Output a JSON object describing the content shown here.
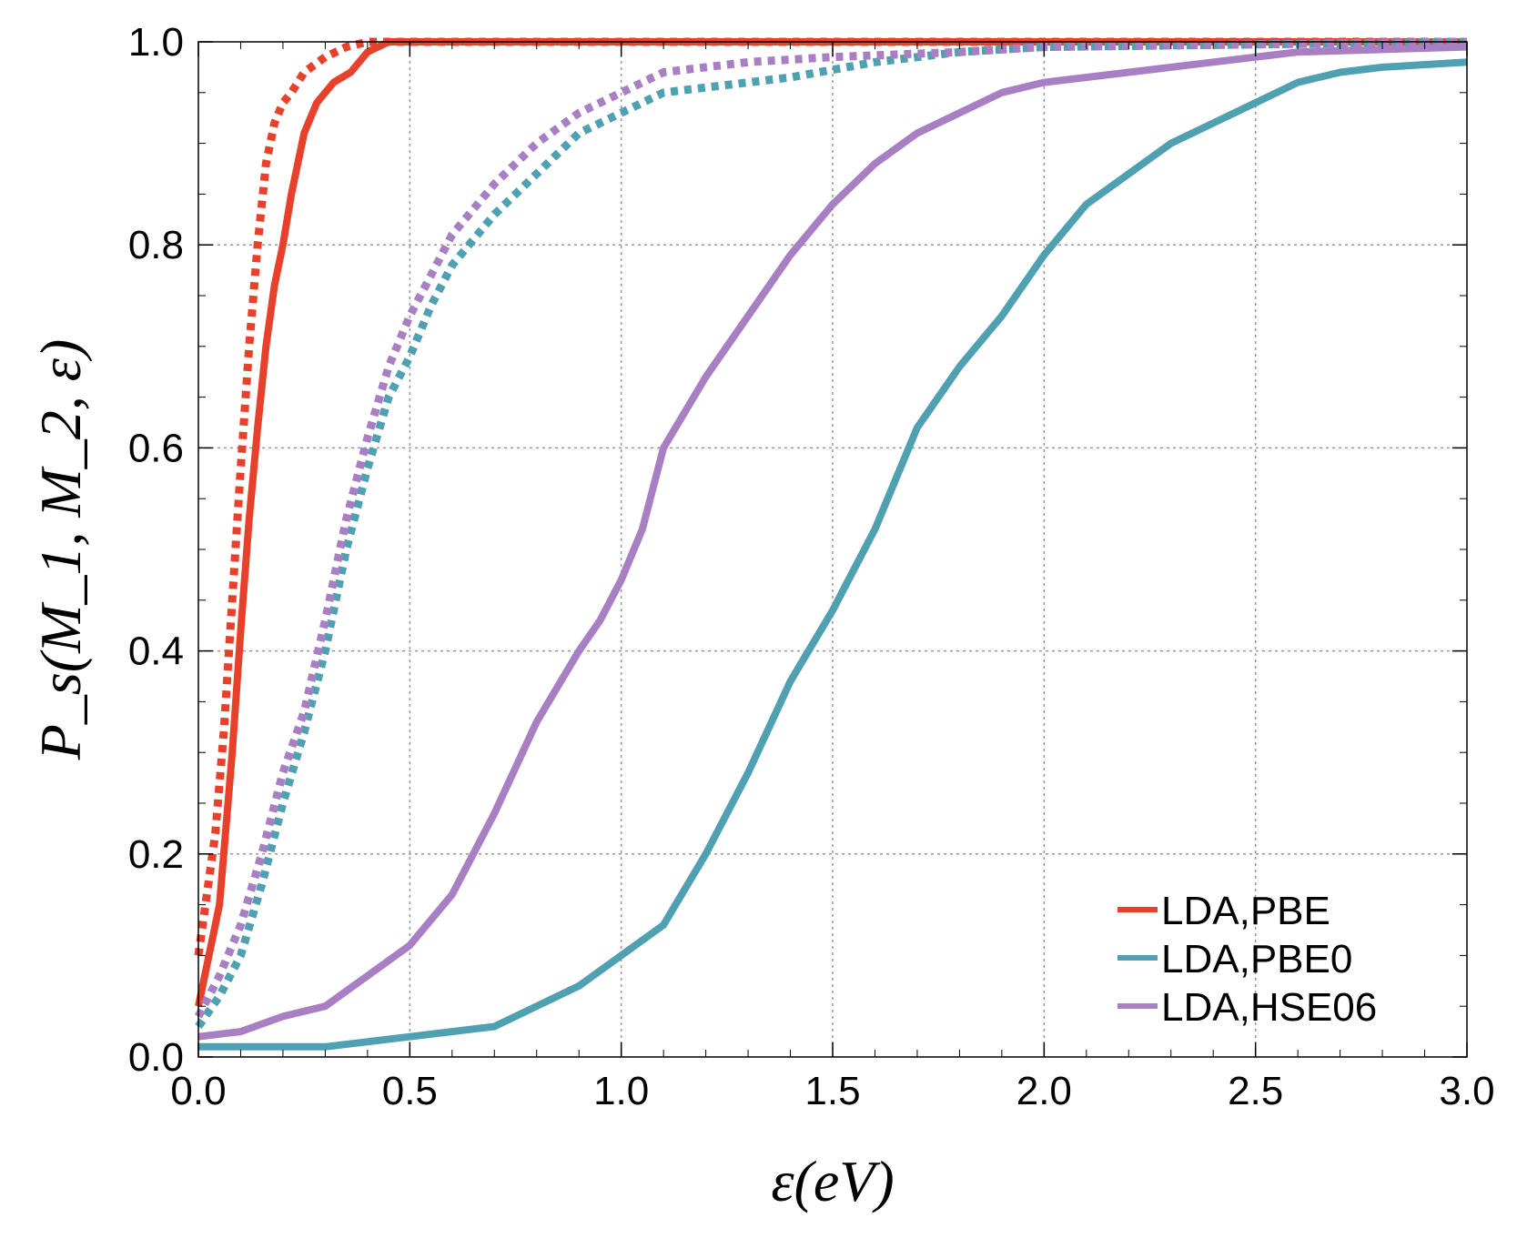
{
  "chart_data": {
    "type": "line",
    "title": "",
    "xlabel": "ε(eV)",
    "ylabel": "P_s(M_1, M_2, ε)",
    "xlim": [
      0,
      3.0
    ],
    "ylim": [
      0,
      1.0
    ],
    "x_ticks": [
      "0.0",
      "0.5",
      "1.0",
      "1.5",
      "2.0",
      "2.5",
      "3.0"
    ],
    "y_ticks": [
      "0.0",
      "0.2",
      "0.4",
      "0.6",
      "0.8",
      "1.0"
    ],
    "grid": true,
    "legend_position": "bottom-right",
    "legend": [
      {
        "label": "LDA,PBE",
        "color": "#e8412b"
      },
      {
        "label": "LDA,PBE0",
        "color": "#4fa0b1"
      },
      {
        "label": "LDA,HSE06",
        "color": "#a97fc4"
      }
    ],
    "series": [
      {
        "name": "LDA,PBE (solid)",
        "color": "#e8412b",
        "style": "solid",
        "x": [
          0.0,
          0.02,
          0.05,
          0.08,
          0.1,
          0.12,
          0.14,
          0.16,
          0.18,
          0.2,
          0.22,
          0.25,
          0.28,
          0.32,
          0.36,
          0.4,
          0.45,
          0.5,
          1.0,
          2.0,
          3.0
        ],
        "y": [
          0.05,
          0.09,
          0.15,
          0.3,
          0.42,
          0.53,
          0.62,
          0.7,
          0.76,
          0.8,
          0.85,
          0.91,
          0.94,
          0.96,
          0.97,
          0.99,
          1.0,
          1.0,
          1.0,
          1.0,
          1.0
        ]
      },
      {
        "name": "LDA,PBE (dotted)",
        "color": "#e8412b",
        "style": "dotted",
        "x": [
          0.0,
          0.02,
          0.04,
          0.06,
          0.08,
          0.1,
          0.12,
          0.14,
          0.16,
          0.18,
          0.2,
          0.22,
          0.25,
          0.3,
          0.35,
          0.4,
          0.5,
          1.0,
          3.0
        ],
        "y": [
          0.1,
          0.16,
          0.22,
          0.32,
          0.45,
          0.58,
          0.7,
          0.8,
          0.88,
          0.92,
          0.94,
          0.95,
          0.97,
          0.985,
          0.995,
          1.0,
          1.0,
          1.0,
          1.0
        ]
      },
      {
        "name": "LDA,PBE0 (solid)",
        "color": "#4fa0b1",
        "style": "solid",
        "x": [
          0.0,
          0.2,
          0.3,
          0.5,
          0.6,
          0.7,
          0.8,
          0.9,
          1.0,
          1.1,
          1.2,
          1.3,
          1.4,
          1.5,
          1.6,
          1.7,
          1.8,
          1.9,
          2.0,
          2.1,
          2.2,
          2.3,
          2.4,
          2.5,
          2.6,
          2.7,
          2.8,
          3.0
        ],
        "y": [
          0.01,
          0.01,
          0.01,
          0.02,
          0.025,
          0.03,
          0.05,
          0.07,
          0.1,
          0.13,
          0.2,
          0.28,
          0.37,
          0.44,
          0.52,
          0.62,
          0.68,
          0.73,
          0.79,
          0.84,
          0.87,
          0.9,
          0.92,
          0.94,
          0.96,
          0.97,
          0.975,
          0.98
        ]
      },
      {
        "name": "LDA,PBE0 (dotted)",
        "color": "#4fa0b1",
        "style": "dotted",
        "x": [
          0.0,
          0.05,
          0.1,
          0.15,
          0.2,
          0.25,
          0.3,
          0.35,
          0.4,
          0.45,
          0.5,
          0.55,
          0.6,
          0.7,
          0.8,
          0.9,
          1.0,
          1.1,
          1.2,
          1.4,
          1.6,
          1.8,
          2.0,
          3.0
        ],
        "y": [
          0.03,
          0.06,
          0.1,
          0.17,
          0.25,
          0.32,
          0.4,
          0.5,
          0.58,
          0.65,
          0.69,
          0.74,
          0.78,
          0.83,
          0.87,
          0.91,
          0.93,
          0.95,
          0.955,
          0.965,
          0.98,
          0.99,
          0.995,
          1.0
        ]
      },
      {
        "name": "LDA,HSE06 (solid)",
        "color": "#a97fc4",
        "style": "solid",
        "x": [
          0.0,
          0.1,
          0.2,
          0.3,
          0.4,
          0.5,
          0.6,
          0.7,
          0.8,
          0.9,
          0.95,
          1.0,
          1.05,
          1.1,
          1.2,
          1.3,
          1.4,
          1.5,
          1.6,
          1.7,
          1.8,
          1.9,
          2.0,
          2.2,
          2.4,
          2.6,
          3.0
        ],
        "y": [
          0.02,
          0.025,
          0.04,
          0.05,
          0.08,
          0.11,
          0.16,
          0.24,
          0.33,
          0.4,
          0.43,
          0.47,
          0.52,
          0.6,
          0.67,
          0.73,
          0.79,
          0.84,
          0.88,
          0.91,
          0.93,
          0.95,
          0.96,
          0.97,
          0.98,
          0.99,
          0.995
        ]
      },
      {
        "name": "LDA,HSE06 (dotted)",
        "color": "#a97fc4",
        "style": "dotted",
        "x": [
          0.0,
          0.05,
          0.1,
          0.15,
          0.2,
          0.25,
          0.3,
          0.35,
          0.4,
          0.45,
          0.5,
          0.55,
          0.6,
          0.7,
          0.8,
          0.9,
          1.0,
          1.05,
          1.1,
          1.3,
          1.5,
          1.8,
          2.0,
          3.0
        ],
        "y": [
          0.04,
          0.08,
          0.13,
          0.2,
          0.28,
          0.34,
          0.43,
          0.53,
          0.61,
          0.68,
          0.73,
          0.77,
          0.81,
          0.86,
          0.9,
          0.93,
          0.95,
          0.96,
          0.97,
          0.98,
          0.985,
          0.99,
          0.995,
          1.0
        ]
      }
    ]
  }
}
